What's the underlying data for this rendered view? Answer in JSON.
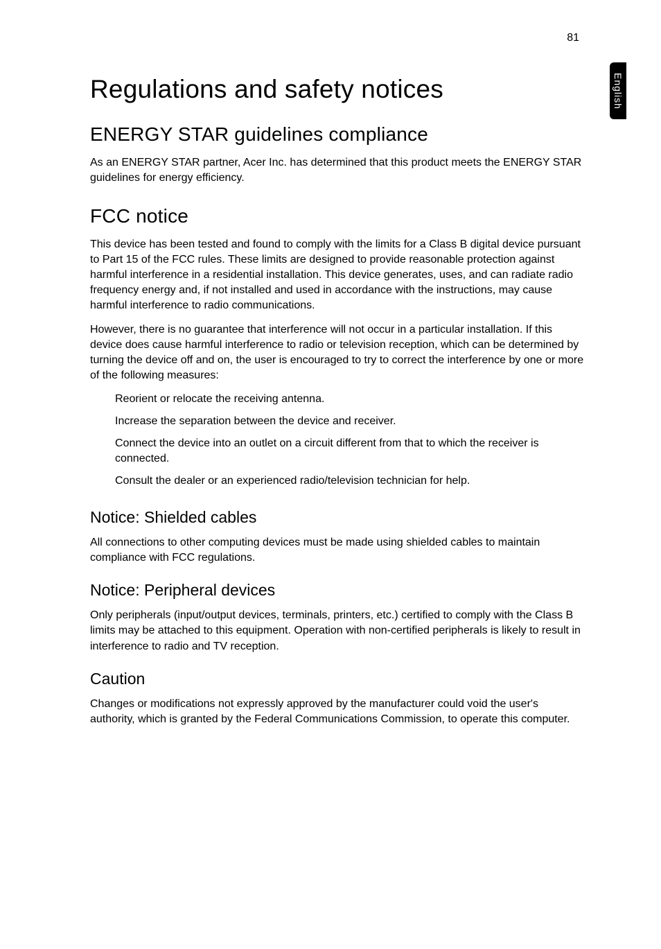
{
  "page_number": "81",
  "side_tab": "English",
  "h1": "Regulations and safety notices",
  "sections": {
    "energy_star": {
      "heading": "ENERGY STAR guidelines compliance",
      "p1": "As an ENERGY STAR partner, Acer Inc. has determined that this product meets the ENERGY STAR guidelines for energy efficiency."
    },
    "fcc": {
      "heading": "FCC notice",
      "p1": "This device has been tested and found to comply with the limits for a Class B digital device pursuant to Part 15 of the FCC rules. These limits are designed to provide reasonable protection against harmful interference in a residential installation. This device generates, uses, and can radiate radio frequency energy and, if not installed and used in accordance with the instructions, may cause harmful interference to radio communications.",
      "p2": "However, there is no guarantee that interference will not occur in a particular installation. If this device does cause harmful interference to radio or television reception, which can be determined by turning the device off and on, the user is encouraged to try to correct the interference by one or more of the following measures:",
      "bullets": {
        "b0": "Reorient or relocate the receiving antenna.",
        "b1": "Increase the separation between the device and receiver.",
        "b2": "Connect the device into an outlet on a circuit different from that to which the receiver is connected.",
        "b3": "Consult the dealer or an experienced radio/television technician for help."
      }
    },
    "shielded": {
      "heading": "Notice: Shielded cables",
      "p1": "All connections to other computing devices must be made using shielded cables to maintain compliance with FCC regulations."
    },
    "peripheral": {
      "heading": "Notice: Peripheral devices",
      "p1": "Only peripherals (input/output devices, terminals, printers, etc.) certified to comply with the Class B limits may be attached to this equipment. Operation with non-certified peripherals is likely to result in interference to radio and TV reception."
    },
    "caution": {
      "heading": "Caution",
      "p1": "Changes or modifications not expressly approved by the manufacturer could void the user's authority, which is granted by the Federal Communications Commission, to operate this computer."
    }
  }
}
